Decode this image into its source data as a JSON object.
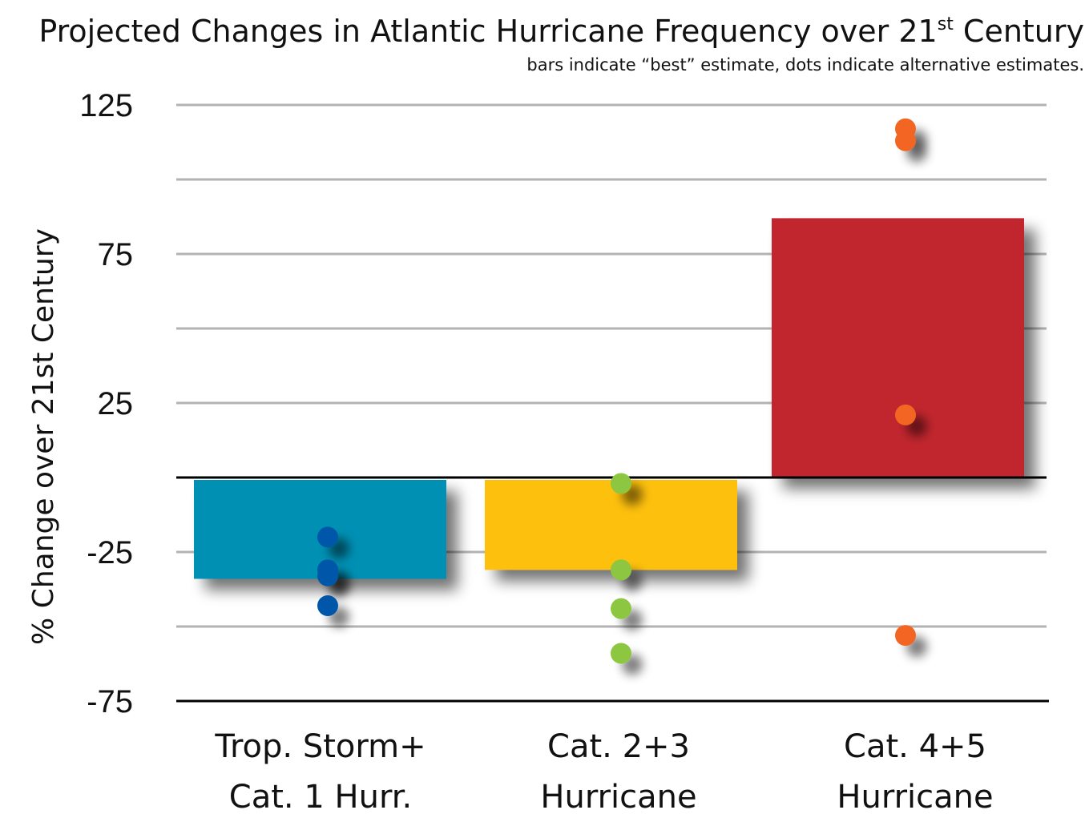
{
  "chart_data": {
    "type": "bar",
    "title": "Projected Changes in Atlantic Hurricane Frequency over 21",
    "title_superscript": "st",
    "title_suffix": " Century",
    "subtitle": "bars indicate “best” estimate, dots indicate alternative estimates.",
    "ylabel": "% Change over 21st Century",
    "xlabel": "",
    "ylim": [
      -75,
      125
    ],
    "yticks": [
      "125",
      "75",
      "25",
      "-25",
      "-75"
    ],
    "ytick_values": [
      125,
      75,
      25,
      -25,
      -75
    ],
    "grid": true,
    "categories": [
      [
        "Trop. Storm+",
        "Cat. 1 Hurr."
      ],
      [
        "Cat. 2+3",
        "Hurricane"
      ],
      [
        "Cat. 4+5",
        "Hurricane"
      ]
    ],
    "values": [
      -34,
      -31,
      87
    ],
    "colors": [
      "#0090b4",
      "#fdc010",
      "#c1272d"
    ],
    "alt_estimates": [
      [
        -20,
        -31,
        -33,
        -43
      ],
      [
        -2,
        -31,
        -44,
        -59
      ],
      [
        117,
        113,
        21,
        -53
      ]
    ],
    "dot_colors": [
      "#0057a8",
      "#8dc63f",
      "#f26522"
    ]
  }
}
